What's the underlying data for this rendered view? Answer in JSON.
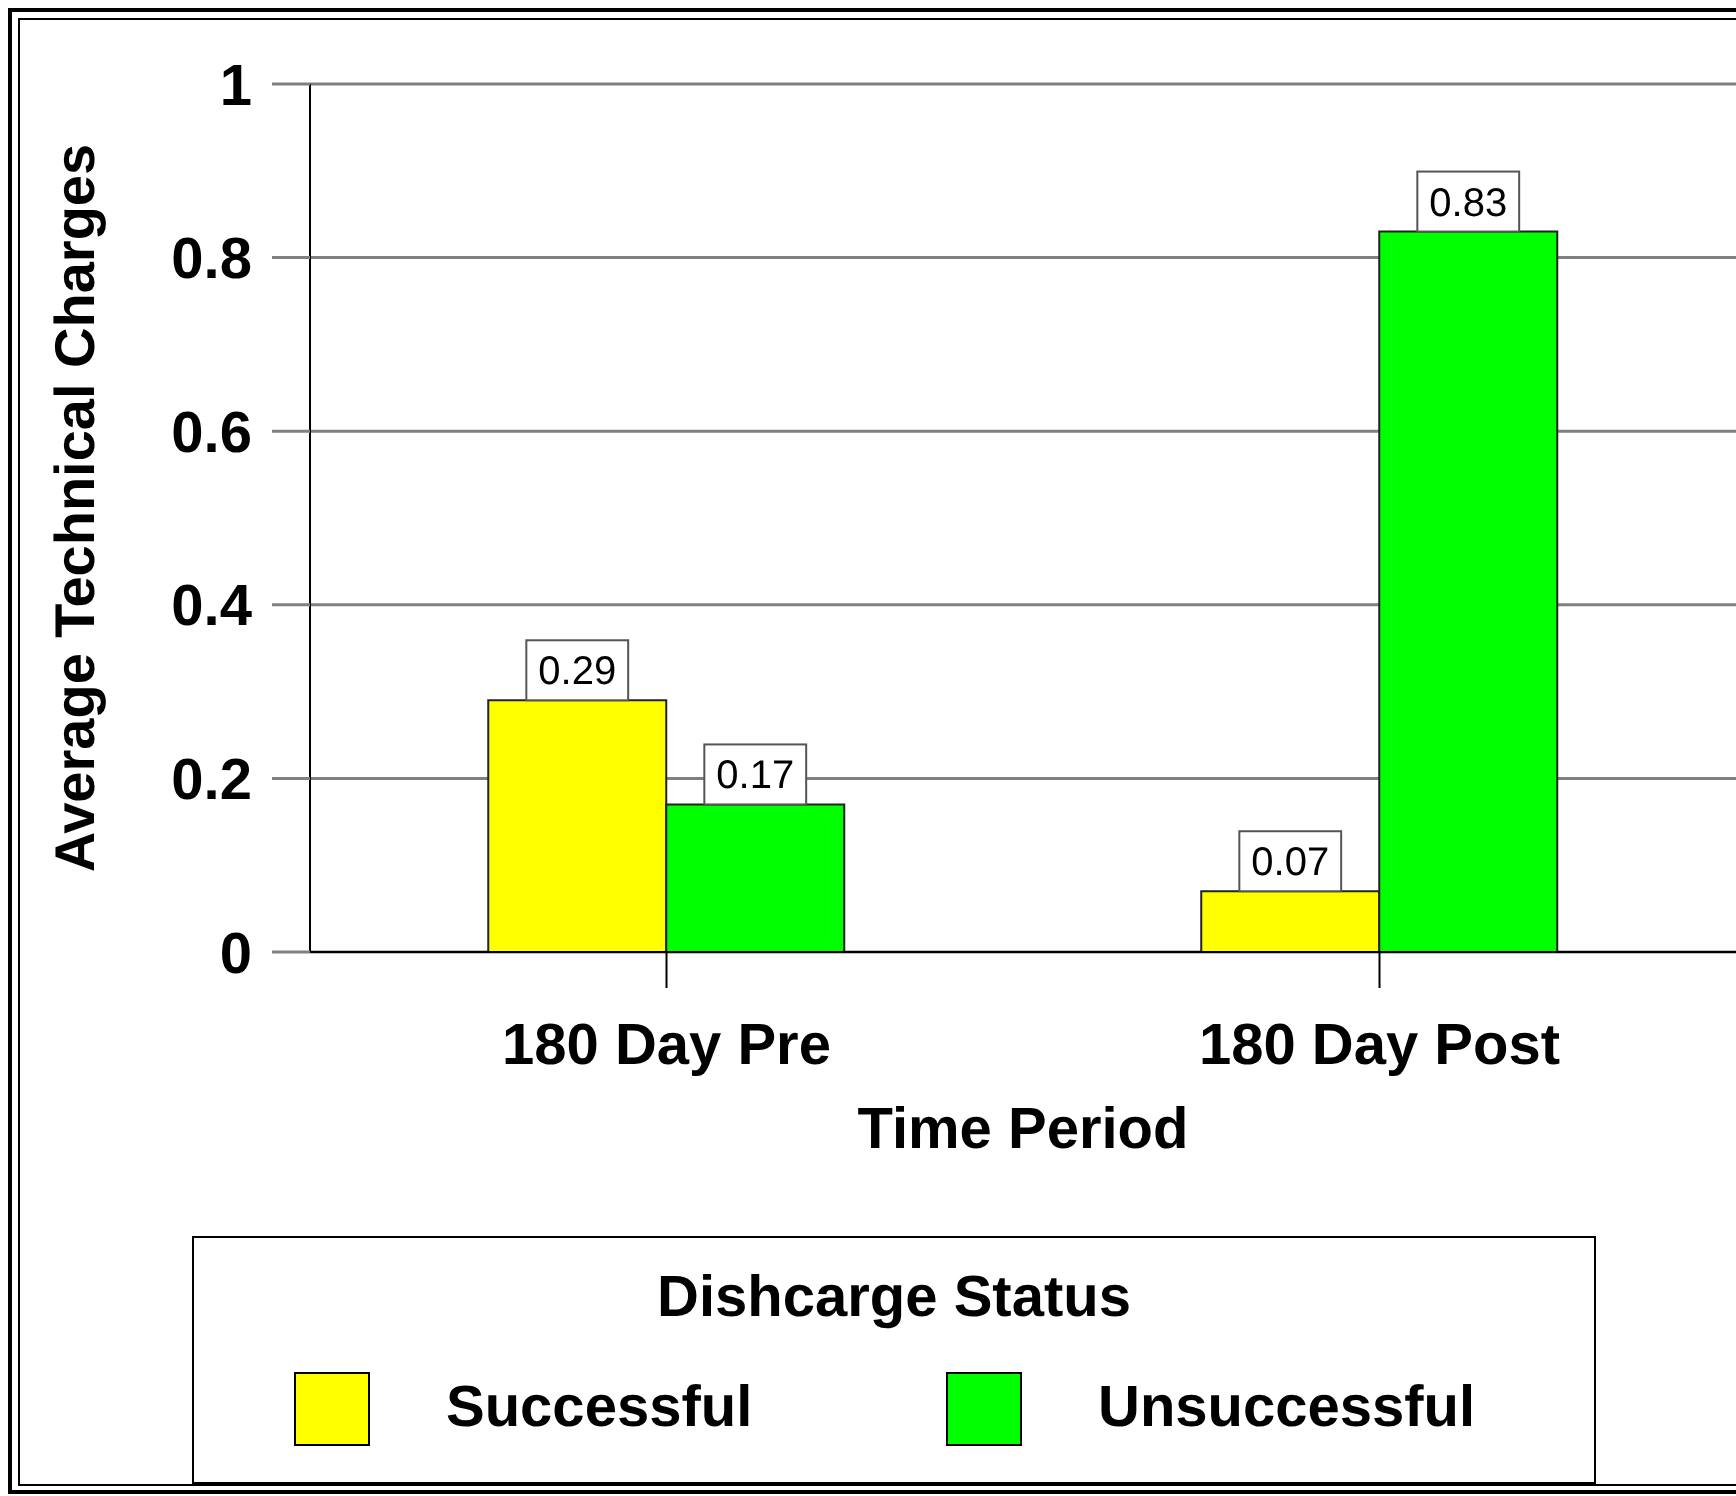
{
  "chart_data": {
    "type": "bar",
    "categories": [
      "180 Day Pre",
      "180 Day Post"
    ],
    "series": [
      {
        "name": "Successful",
        "color": "#ffff00",
        "values": [
          0.29,
          0.07
        ]
      },
      {
        "name": "Unsuccessful",
        "color": "#00ff00",
        "values": [
          0.17,
          0.83
        ]
      }
    ],
    "xlabel": "Time Period",
    "ylabel": "Average Technical Charges",
    "legend_title": "Dishcarge Status",
    "ylim": [
      0,
      1
    ],
    "yticks": [
      0,
      0.2,
      0.4,
      0.6,
      0.8,
      1
    ],
    "grid": "y",
    "legend": "bottom",
    "data_labels": true
  }
}
